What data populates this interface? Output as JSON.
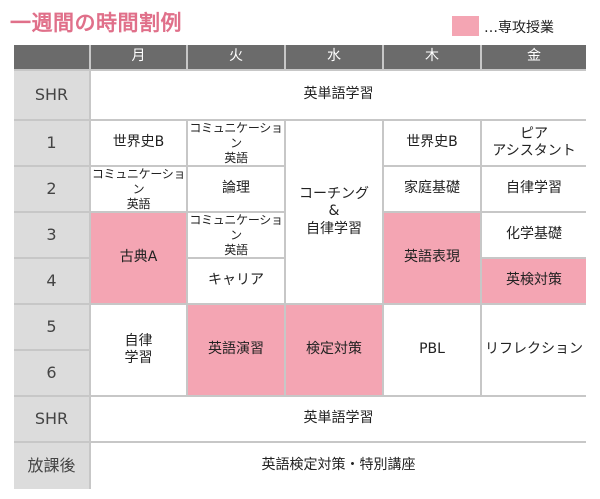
{
  "title": "一週間の時間割例",
  "legend": {
    "label": "…専攻授業",
    "color": "#f4a5b3"
  },
  "days": [
    "月",
    "火",
    "水",
    "木",
    "金"
  ],
  "rows": {
    "shr_top": "SHR",
    "p1": "1",
    "p2": "2",
    "p3": "3",
    "p4": "4",
    "p5": "5",
    "p6": "6",
    "shr_bottom": "SHR",
    "after": "放課後"
  },
  "cells": {
    "shr_top": "英単語学習",
    "mon_1": "世界史B",
    "mon_2": [
      "コミュニケーション",
      "英語"
    ],
    "mon_34": "古典A",
    "mon_56": [
      "自律",
      "学習"
    ],
    "tue_1": [
      "コミュニケーション",
      "英語"
    ],
    "tue_2": "論理",
    "tue_3": [
      "コミュニケーション",
      "英語"
    ],
    "tue_4": "キャリア",
    "tue_56": "英語演習",
    "wed_14": [
      "コーチング",
      "&",
      "自律学習"
    ],
    "wed_56": "検定対策",
    "thu_1": "世界史B",
    "thu_2": "家庭基礎",
    "thu_34": "英語表現",
    "thu_56": "PBL",
    "fri_1": [
      "ピア",
      "アシスタント"
    ],
    "fri_2": "自律学習",
    "fri_3": "化学基礎",
    "fri_4": "英検対策",
    "fri_56": "リフレクション",
    "shr_bottom": "英単語学習",
    "after": "英語検定対策・特別講座"
  }
}
